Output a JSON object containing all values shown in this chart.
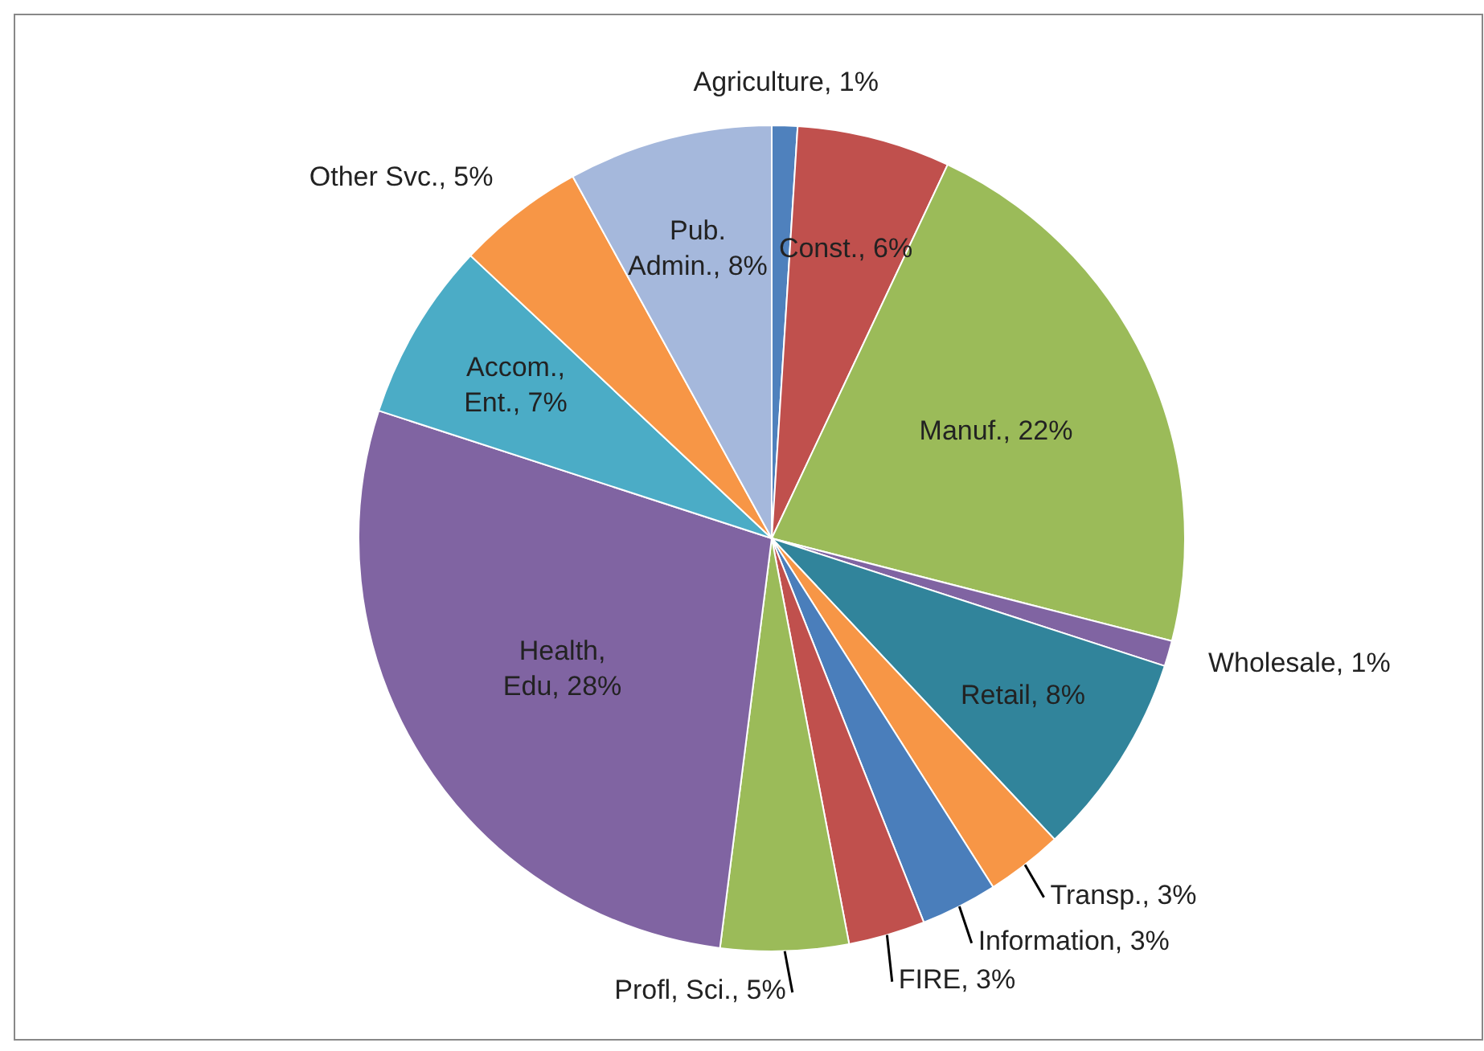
{
  "chart_data": {
    "type": "pie",
    "categories": [
      "Agriculture",
      "Const.",
      "Manuf.",
      "Wholesale",
      "Retail",
      "Transp.",
      "Information",
      "FIRE",
      "Profl, Sci.",
      "Health, Edu",
      "Accom., Ent.",
      "Other Svc.",
      "Pub. Admin."
    ],
    "values": [
      1,
      6,
      22,
      1,
      8,
      3,
      3,
      3,
      5,
      28,
      7,
      5,
      8
    ],
    "value_labels": [
      "1%",
      "6%",
      "22%",
      "1%",
      "8%",
      "3%",
      "3%",
      "3%",
      "5%",
      "28%",
      "7%",
      "5%",
      "8%"
    ],
    "colors": [
      "#4f81bd",
      "#c0504d",
      "#9bbb59",
      "#8064a2",
      "#31849b",
      "#f79646",
      "#4a7ebb",
      "#c0504d",
      "#9bbb59",
      "#8064a2",
      "#4bacc6",
      "#f79646",
      "#a5b8dc"
    ]
  }
}
